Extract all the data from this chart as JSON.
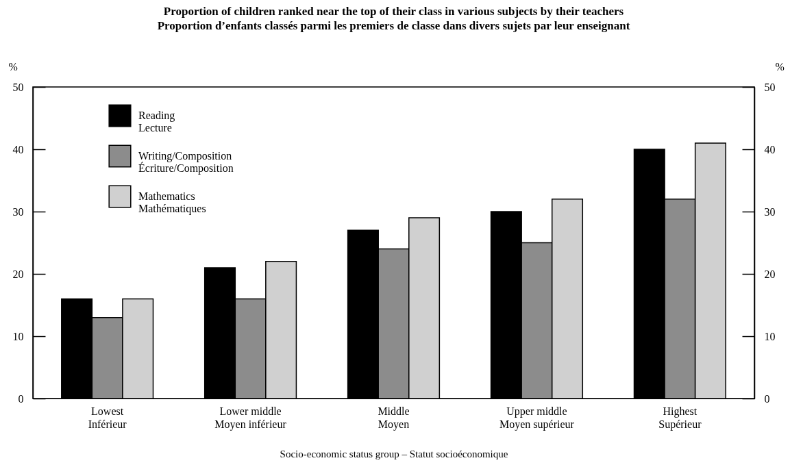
{
  "chart_data": {
    "type": "bar",
    "title": "Proportion of children ranked near the top of their class in various subjects by their teachers\nProportion d’enfants classés parmi les premiers de classe dans divers sujets par leur enseignant",
    "xlabel": "Socio-economic status group – Statut socioéconomique",
    "ylabel": "%",
    "y2label": "%",
    "categories": [
      "Lowest\nInférieur",
      "Lower middle\nMoyen inférieur",
      "Middle\nMoyen",
      "Upper middle\nMoyen supérieur",
      "Highest\nSupérieur"
    ],
    "series": [
      {
        "name": "Reading\nLecture",
        "color": "#000000",
        "values": [
          16,
          21,
          27,
          30,
          40
        ]
      },
      {
        "name": "Writing/Composition\nÉcriture/Composition",
        "color": "#8c8c8c",
        "values": [
          13,
          16,
          24,
          25,
          32
        ]
      },
      {
        "name": "Mathematics\nMathématiques",
        "color": "#d0d0d0",
        "values": [
          16,
          22,
          29,
          32,
          41
        ]
      }
    ],
    "ylim": [
      0,
      50
    ],
    "yticks": [
      0,
      10,
      20,
      30,
      40,
      50
    ],
    "y2lim": [
      0,
      50
    ],
    "y2ticks": [
      0,
      10,
      20,
      30,
      40,
      50
    ],
    "grid": false,
    "legend": "top left"
  }
}
